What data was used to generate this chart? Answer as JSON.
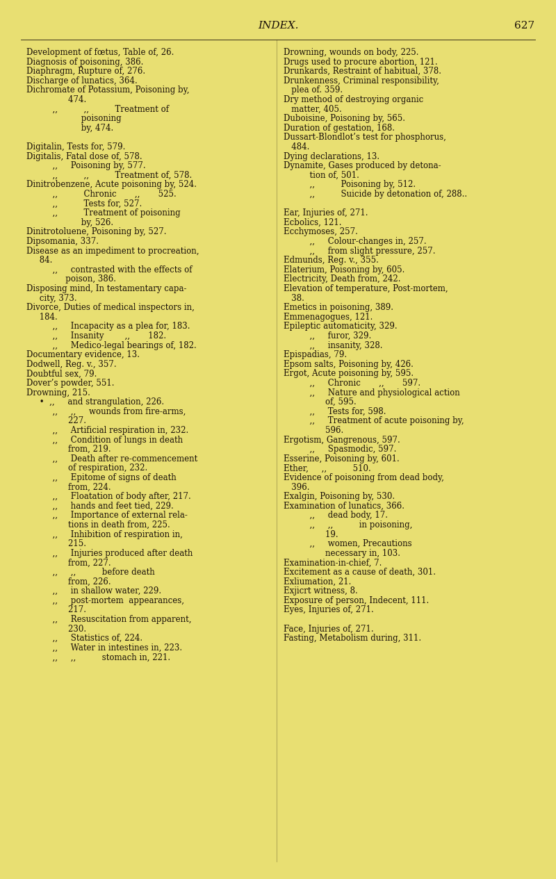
{
  "bg_color": "#e8df72",
  "text_color": "#1a1008",
  "header_text": "INDEX.",
  "page_num": "627",
  "figsize": [
    8.0,
    12.65
  ],
  "dpi": 100,
  "left_col": [
    "Development of fœtus, Table of, 26.",
    "Diagnosis of poisoning, 386.",
    "Diaphragm, Rupture of, 276.",
    "Discharge of lunatics, 364.",
    "Dichromate of Potassium, Poisoning by,",
    "                474.",
    "          ,,          ,,          Treatment of",
    "                     poisoning",
    "                     by, 474.",
    "",
    "Digitalin, Tests for, 579.",
    "Digitalis, Fatal dose of, 578.",
    "          ,,     Poisoning by, 577.",
    "          ,,          ,,          Treatment of, 578.",
    "Dinitrobenzene, Acute poisoning by, 524.",
    "          ,,          Chronic       ,,       525.",
    "          ,,          Tests for, 527.",
    "          ,,          Treatment of poisoning",
    "                     by, 526.",
    "Dinitrotoluene, Poisoning by, 527.",
    "Dipsomania, 337.",
    "Disease as an impediment to procreation,",
    "     84.",
    "          ,,     contrasted with the effects of",
    "               poison, 386.",
    "Disposing mind, In testamentary capa-",
    "     city, 373.",
    "Divorce, Duties of medical inspectors in,",
    "     184.",
    "          ,,     Incapacity as a plea for, 183.",
    "          ,,     Insanity        ,,       182.",
    "          ,,     Medico-legal bearings of, 182.",
    "Documentary evidence, 13.",
    "Dodwell, Reg. v., 357.",
    "Doubtful sex, 79.",
    "Dover’s powder, 551.",
    "Drowning, 215.",
    "     •  ,,     and strangulation, 226.",
    "          ,,     ,,     wounds from fire-arms,",
    "                227.",
    "          ,,     Artificial respiration in, 232.",
    "          ,,     Condition of lungs in death",
    "                from, 219.",
    "          ,,     Death after re-commencement",
    "                of respiration, 232.",
    "          ,,     Epitome of signs of death",
    "                from, 224.",
    "          ,,     Floatation of body after, 217.",
    "          ,,     hands and feet tied, 229.",
    "          ,,     Importance of external rela-",
    "                tions in death from, 225.",
    "          ,,     Inhibition of respiration in,",
    "                215.",
    "          ,,     Injuries produced after death",
    "                from, 227.",
    "          ,,     ,,          before death",
    "                from, 226.",
    "          ,,     in shallow water, 229.",
    "          ,,     post-mortem  appearances,",
    "                217.",
    "          ,,     Resuscitation from apparent,",
    "                230.",
    "          ,,     Statistics of, 224.",
    "          ,,     Water in intestines in, 223.",
    "          ,,     ,,          stomach in, 221."
  ],
  "right_col": [
    "Drowning, wounds on body, 225.",
    "Drugs used to procure abortion, 121.",
    "Drunkards, Restraint of habitual, 378.",
    "Drunkenness, Criminal responsibility,",
    "   plea of. 359.",
    "Dry method of destroying organic",
    "   matter, 405.",
    "Duboisine, Poisoning by, 565.",
    "Duration of gestation, 168.",
    "Dussart-Blondlot’s test for phosphorus,",
    "   484.",
    "Dying declarations, 13.",
    "Dynamite, Gases produced by detona-",
    "          tion of, 501.",
    "          ,,          Poisoning by, 512.",
    "          ,,          Suicide by detonation of, 288.. ",
    "",
    "Ear, Injuries of, 271.",
    "Ecbolics, 121.",
    "Ecchymoses, 257.",
    "          ,,     Colour-changes in, 257.",
    "          ,,     from slight pressure, 257.",
    "Edmunds, Reg. v., 355.",
    "Elaterium, Poisoning by, 605.",
    "Electricity, Death from, 242.",
    "Elevation of temperature, Post-mortem,",
    "   38.",
    "Emetics in poisoning, 389.",
    "Emmenagogues, 121.",
    "Epileptic automaticity, 329.",
    "          ,,     furor, 329.",
    "          ,,     insanity, 328.",
    "Epispadias, 79.",
    "Epsom salts, Poisoning by, 426.",
    "Ergot, Acute poisoning by, 595.",
    "          ,,     Chronic       ,,       597.",
    "          ,,     Nature and physiological action",
    "                of, 595.",
    "          ,,     Tests for, 598.",
    "          ,,     Treatment of acute poisoning by,",
    "                596.",
    "Ergotism, Gangrenous, 597.",
    "          ,,     Spasmodic, 597.",
    "Esserine, Poisoning by, 601.",
    "Ether,     ,,          510.",
    "Evidence of poisoning from dead body,",
    "   396.",
    "Exalgin, Poisoning by, 530.",
    "Examination of lunatics, 366.",
    "          ,,     dead body, 17.",
    "          ,,     ,,          in poisoning,",
    "                19.",
    "          ,,     women, Precautions",
    "                necessary in, 103.",
    "Examination-in-chief, 7.",
    "Excitement as a cause of death, 301.",
    "Exliumation, 21.",
    "Exjicrt witness, 8.",
    "Exposure of person, Indecent, 111.",
    "Eyes, Injuries of, 271.",
    "",
    "Face, Injuries of, 271.",
    "Fasting, Metabolism during, 311."
  ]
}
